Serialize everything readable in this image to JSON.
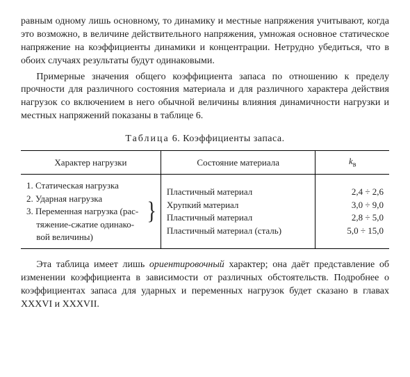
{
  "paragraphs": {
    "p1": "равным одному лишь основному, то динамику и местные напряжения учитывают, когда это возможно, в величине действительного напряжения, умножая основное статическое напряжение на коэффициенты динамики и концентрации. Нетрудно убедиться, что в обоих случаях результаты будут одинаковыми.",
    "p2": "Примерные значения общего коэффициента запаса по отношению к пределу прочности для различного состояния материала и для различного характера действия нагрузок со включением в него обычной величины влияния динамичности нагрузки и местных напряжений показаны в таблице 6.",
    "p3a": "Эта таблица имеет лишь ",
    "p3_em": "ориентировочный",
    "p3b": " характер; она даёт представление об изменении коэффициента в зависимости от различных обстоятельств. Подробнее о коэффициентах запаса для ударных и переменных нагрузок будет сказано в главах XXXVI и XXXVII."
  },
  "table": {
    "caption_word": "Таблица",
    "caption_rest": " 6. Коэффициенты запаса.",
    "headers": {
      "load": "Характер нагрузки",
      "material": "Состояние материала",
      "k_sym": "k",
      "k_sub": "в"
    },
    "loads": {
      "row1": "1. Статическая нагрузка",
      "row2": "2. Ударная нагрузка",
      "row3a": "3. Переменная нагрузка (рас-",
      "row3b": "тяжение-сжатие одинако-",
      "row3c": "вой величины)"
    },
    "materials": {
      "m1": "Пластичный материал",
      "m2": "Хрупкий материал",
      "m3": "Пластичный материал",
      "m4": "Пластичный материал (сталь)"
    },
    "kvals": {
      "k1": "2,4 ÷   2,6",
      "k2": "3,0 ÷   9,0",
      "k3": "2,8 ÷   5,0",
      "k4": "5,0 ÷ 15,0"
    }
  }
}
